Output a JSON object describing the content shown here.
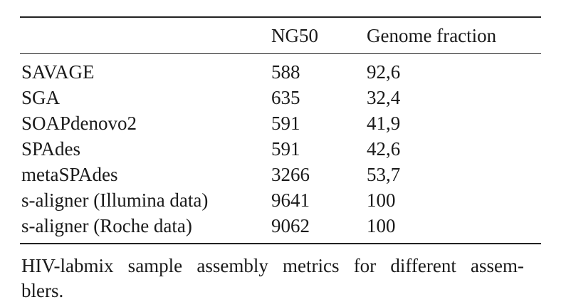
{
  "table": {
    "columns": [
      "",
      "NG50",
      "Genome fraction"
    ],
    "rows": [
      {
        "assembler": "SAVAGE",
        "ng50": "588",
        "genome_fraction": "92,6"
      },
      {
        "assembler": "SGA",
        "ng50": "635",
        "genome_fraction": "32,4"
      },
      {
        "assembler": "SOAPdenovo2",
        "ng50": "591",
        "genome_fraction": "41,9"
      },
      {
        "assembler": "SPAdes",
        "ng50": "591",
        "genome_fraction": "42,6"
      },
      {
        "assembler": "metaSPAdes",
        "ng50": "3266",
        "genome_fraction": "53,7"
      },
      {
        "assembler": "s-aligner (Illumina data)",
        "ng50": "9641",
        "genome_fraction": "100"
      },
      {
        "assembler": "s-aligner (Roche data)",
        "ng50": "9062",
        "genome_fraction": "100"
      }
    ]
  },
  "caption": {
    "line1": "HIV-labmix sample assembly metrics for different assem-",
    "line2": "blers."
  }
}
